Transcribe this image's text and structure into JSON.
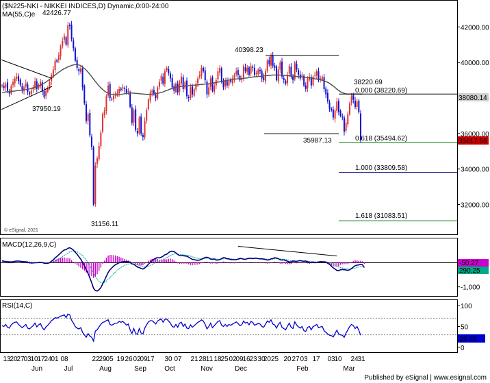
{
  "header": {
    "title": "($N225-NKI - NIKKEI INDICES,D) Dynamic,0:00-24:00",
    "ma_label": "MA(55,C)e",
    "watermark": "© eSignal, 2021",
    "published": "Published by eSignal | www.esignal.com"
  },
  "colors": {
    "up": "#e03030",
    "down": "#1010d0",
    "ma": "#555555",
    "fib_green": "#007700",
    "fib_navy": "#000080",
    "macd_line": "#000080",
    "macd_signal": "#00aa88",
    "macd_hist": "#cc00cc",
    "rsi": "#0000cc",
    "last_price_bg": "#cc0000",
    "current_label_bg": "#cfcfcf"
  },
  "chart_data": [
    {
      "type": "candlestick",
      "panel": "price",
      "ylim": [
        30400,
        43400
      ],
      "y_ticks": [
        "42000.00",
        "40000.00",
        "38000.00",
        "36000.00",
        "34000.00",
        "32000.00"
      ],
      "x_tick_labels": [
        "13",
        "20",
        "27",
        "03",
        "10",
        "17",
        "24",
        "01",
        "08",
        "22",
        "29",
        "05",
        "19",
        "26",
        "02",
        "09",
        "17",
        "30",
        "07",
        "21",
        "28",
        "11",
        "18",
        "25",
        "02",
        "09",
        "16",
        "23",
        "30",
        "2025",
        "20",
        "27",
        "03",
        "17",
        "03",
        "10",
        "24",
        "31"
      ],
      "month_labels": [
        "Jun",
        "Jul",
        "Aug",
        "Sep",
        "Oct",
        "Nov",
        "Dec",
        "Feb",
        "Mar"
      ],
      "close": [
        38720,
        38560,
        38800,
        38400,
        38250,
        38680,
        38900,
        39100,
        39200,
        38950,
        38720,
        38400,
        38600,
        38830,
        38340,
        38200,
        38410,
        38620,
        38950,
        38500,
        38740,
        38900,
        38360,
        38050,
        38400,
        38600,
        38900,
        39300,
        39600,
        40100,
        40050,
        40400,
        40900,
        41200,
        41500,
        41000,
        42100,
        42050,
        41300,
        40800,
        40100,
        39700,
        39500,
        39650,
        38600,
        37700,
        36700,
        37100,
        35900,
        35250,
        32000,
        34200,
        34600,
        35300,
        36050,
        37100,
        37300,
        38100,
        38700,
        38000,
        37920,
        38130,
        38250,
        38280,
        38500,
        38450,
        38600,
        38500,
        38300,
        38400,
        37500,
        36600,
        37300,
        36200,
        36000,
        36900,
        36000,
        35800,
        36700,
        37300,
        37900,
        38300,
        38400,
        38250,
        38000,
        38600,
        38900,
        39250,
        38800,
        39500,
        39700,
        39400,
        39100,
        38600,
        38400,
        38800,
        38300,
        38900,
        39200,
        38500,
        38900,
        38100,
        38000,
        38600,
        38200,
        38500,
        38800,
        39100,
        39300,
        39700,
        39500,
        39000,
        38200,
        38600,
        39100,
        38400,
        38700,
        39000,
        39500,
        39700,
        38900,
        38600,
        39000,
        38700,
        39000,
        38900,
        39100,
        39300,
        39500,
        39300,
        39000,
        39100,
        39800,
        39500,
        39700,
        39300,
        39800,
        39700,
        39300,
        39400,
        39600,
        39500,
        39100,
        39000,
        39500,
        40100,
        39900,
        40400,
        39800,
        39700,
        39000,
        39600,
        40000,
        39200,
        39000,
        38800,
        39300,
        39800,
        39200,
        39000,
        40000,
        39600,
        39300,
        39100,
        39300,
        38700,
        38500,
        39100,
        39200,
        38700,
        39200,
        39300,
        39500,
        39000,
        39100,
        39200,
        38500,
        38200,
        37800,
        37400,
        37300,
        36900,
        37300,
        37800,
        37200,
        37000,
        36900,
        36100,
        36600,
        37100,
        37700,
        38100,
        37900,
        37500,
        37800,
        37200,
        35620
      ],
      "ma55": [
        38300,
        38320,
        38340,
        38350,
        38360,
        38370,
        38380,
        38390,
        38410,
        38420,
        38430,
        38440,
        38450,
        38470,
        38490,
        38510,
        38530,
        38560,
        38590,
        38630,
        38670,
        38720,
        38770,
        38830,
        38900,
        38970,
        39050,
        39130,
        39210,
        39290,
        39370,
        39450,
        39520,
        39590,
        39650,
        39700,
        39750,
        39790,
        39830,
        39860,
        39880,
        39880,
        39860,
        39820,
        39750,
        39660,
        39560,
        39450,
        39330,
        39200,
        39060,
        38930,
        38800,
        38680,
        38570,
        38470,
        38390,
        38320,
        38270,
        38230,
        38200,
        38180,
        38170,
        38170,
        38180,
        38200,
        38220,
        38240,
        38260,
        38270,
        38280,
        38280,
        38270,
        38260,
        38250,
        38240,
        38230,
        38220,
        38210,
        38200,
        38200,
        38200,
        38210,
        38220,
        38240,
        38260,
        38280,
        38310,
        38340,
        38380,
        38420,
        38460,
        38500,
        38540,
        38570,
        38600,
        38620,
        38640,
        38650,
        38660,
        38670,
        38680,
        38690,
        38700,
        38710,
        38720,
        38730,
        38740,
        38750,
        38760,
        38770,
        38780,
        38790,
        38800,
        38810,
        38830,
        38850,
        38870,
        38890,
        38910,
        38930,
        38950,
        38970,
        38990,
        39010,
        39030,
        39050,
        39060,
        39070,
        39080,
        39090,
        39100,
        39110,
        39120,
        39130,
        39150,
        39160,
        39180,
        39190,
        39200,
        39210,
        39220,
        39230,
        39240,
        39250,
        39260,
        39270,
        39280,
        39290,
        39290,
        39290,
        39290,
        39290,
        39290,
        39280,
        39270,
        39260,
        39250,
        39240,
        39230,
        39220,
        39210,
        39200,
        39190,
        39180,
        39170,
        39160,
        39150,
        39140,
        39120,
        39100,
        39080,
        39060,
        39040,
        39020,
        39000,
        38970,
        38930,
        38880,
        38820,
        38750,
        38670,
        38590,
        38500,
        38420,
        38350,
        38300,
        38260,
        38230,
        38220,
        38220,
        38220,
        38220,
        38220,
        38220,
        38220,
        38220,
        38220
      ],
      "annotations": [
        {
          "text": "42426.77",
          "date_index": 36,
          "value": 42426.77
        },
        {
          "text": "37950.19",
          "date_index": 14,
          "value": 37950.19
        },
        {
          "text": "31156.11",
          "date_index": 50,
          "value": 31156.11
        },
        {
          "text": "40398.23",
          "date_index": 148,
          "value": 40398.23
        },
        {
          "text": "35987.13",
          "date_index": 190,
          "value": 35987.13
        },
        {
          "text": "38220.69",
          "date_index": 198,
          "value": 38220.69
        }
      ],
      "fib_levels": [
        {
          "label": "0.000 (38220.69)",
          "value": 38220.69
        },
        {
          "label": "0.618 (35494.62)",
          "value": 35494.62
        },
        {
          "label": "1.000 (33809.58)",
          "value": 33809.58
        },
        {
          "label": "1.618 (31083.51)",
          "value": 31083.51
        }
      ],
      "current_labels": [
        {
          "text": "38080.14",
          "value": 38080.14
        },
        {
          "text": "35617.56",
          "value": 35617.56
        }
      ]
    },
    {
      "type": "line",
      "panel": "macd",
      "label": "MACD(12,26,9,C)",
      "ylim": [
        -1350,
        950
      ],
      "y_ticks": [
        "-1,000"
      ],
      "current_labels": [
        "-50.27",
        "290.25"
      ],
      "macd": [
        80,
        60,
        50,
        40,
        30,
        30,
        40,
        60,
        70,
        70,
        60,
        50,
        40,
        40,
        20,
        0,
        -10,
        -10,
        0,
        0,
        10,
        20,
        10,
        -20,
        -30,
        -20,
        0,
        60,
        120,
        200,
        260,
        330,
        400,
        470,
        530,
        540,
        600,
        620,
        580,
        520,
        440,
        350,
        250,
        150,
        20,
        -120,
        -300,
        -440,
        -630,
        -830,
        -1060,
        -1150,
        -1170,
        -1120,
        -1030,
        -880,
        -730,
        -560,
        -400,
        -290,
        -210,
        -140,
        -80,
        -40,
        0,
        20,
        40,
        50,
        50,
        40,
        20,
        -50,
        -60,
        -120,
        -180,
        -200,
        -240,
        -260,
        -220,
        -150,
        -60,
        20,
        90,
        140,
        190,
        210,
        200,
        230,
        270,
        330,
        350,
        420,
        470,
        480,
        460,
        410,
        340,
        300,
        290,
        290,
        280,
        270,
        230,
        180,
        140,
        130,
        110,
        100,
        110,
        140,
        180,
        220,
        230,
        200,
        150,
        140,
        150,
        110,
        110,
        130,
        170,
        210,
        200,
        160,
        160,
        130,
        130,
        120,
        130,
        150,
        180,
        170,
        150,
        140,
        170,
        180,
        190,
        170,
        190,
        190,
        170,
        160,
        160,
        150,
        130,
        110,
        120,
        160,
        170,
        210,
        190,
        170,
        120,
        110,
        120,
        90,
        60,
        30,
        40,
        70,
        60,
        50,
        80,
        90,
        70,
        60,
        70,
        40,
        10,
        20,
        30,
        10,
        20,
        30,
        50,
        40,
        40,
        30,
        -20,
        -70,
        -140,
        -210,
        -260,
        -320,
        -330,
        -290,
        -280,
        -290,
        -300,
        -320,
        -290,
        -240,
        -180,
        -120,
        -100,
        -90,
        -70,
        -80,
        -200
      ],
      "signal": [
        60,
        62,
        62,
        60,
        55,
        50,
        48,
        50,
        54,
        57,
        57,
        56,
        53,
        50,
        44,
        35,
        26,
        19,
        15,
        12,
        12,
        13,
        13,
        6,
        -1,
        -5,
        -4,
        9,
        31,
        65,
        104,
        149,
        199,
        253,
        308,
        354,
        403,
        446,
        473,
        483,
        474,
        449,
        409,
        357,
        290,
        208,
        106,
        -3,
        -128,
        -268,
        -426,
        -571,
        -691,
        -777,
        -828,
        -838,
        -817,
        -766,
        -693,
        -612,
        -532,
        -454,
        -379,
        -311,
        -249,
        -195,
        -148,
        -108,
        -76,
        -53,
        -38,
        -40,
        -44,
        -59,
        -83,
        -106,
        -133,
        -158,
        -170,
        -166,
        -145,
        -112,
        -72,
        -30,
        14,
        53,
        83,
        112,
        144,
        181,
        215,
        256,
        299,
        335,
        360,
        370,
        364,
        351,
        339,
        329,
        319,
        309,
        293,
        270,
        244,
        221,
        199,
        179,
        165,
        160,
        164,
        175,
        186,
        189,
        181,
        173,
        168,
        156,
        147,
        144,
        149,
        161,
        169,
        167,
        166,
        159,
        153,
        147,
        143,
        145,
        152,
        155,
        154,
        151,
        155,
        160,
        166,
        167,
        172,
        176,
        175,
        172,
        170,
        166,
        159,
        149,
        143,
        147,
        151,
        163,
        168,
        168,
        159,
        149,
        143,
        133,
        119,
        101,
        89,
        85,
        80,
        74,
        75,
        78,
        77,
        73,
        73,
        66,
        55,
        48,
        44,
        37,
        34,
        33,
        37,
        38,
        38,
        36,
        25,
        6,
        -23,
        -60,
        -100,
        -144,
        -181,
        -203,
        -218,
        -230,
        -244,
        -259,
        -265,
        -260,
        -244,
        -220,
        -196,
        -175,
        -154,
        -139,
        -151
      ]
    },
    {
      "type": "line",
      "panel": "rsi",
      "label": "RSI(14,C)",
      "ylim": [
        -10,
        110
      ],
      "y_ticks": [
        "100",
        "50",
        "0"
      ],
      "current_label": "29.05",
      "values": [
        52,
        50,
        55,
        48,
        46,
        54,
        58,
        60,
        61,
        55,
        51,
        47,
        51,
        55,
        46,
        44,
        48,
        52,
        58,
        49,
        54,
        57,
        47,
        42,
        49,
        53,
        58,
        64,
        67,
        71,
        70,
        72,
        75,
        76,
        78,
        71,
        80,
        78,
        65,
        58,
        50,
        46,
        44,
        47,
        36,
        30,
        24,
        33,
        27,
        24,
        15,
        39,
        42,
        49,
        55,
        60,
        61,
        64,
        66,
        55,
        53,
        56,
        58,
        58,
        62,
        60,
        62,
        58,
        53,
        56,
        42,
        33,
        45,
        33,
        31,
        45,
        34,
        32,
        46,
        54,
        61,
        64,
        64,
        60,
        56,
        63,
        66,
        68,
        60,
        67,
        68,
        63,
        58,
        50,
        48,
        55,
        48,
        58,
        60,
        50,
        56,
        46,
        45,
        54,
        48,
        52,
        56,
        60,
        62,
        66,
        63,
        55,
        44,
        50,
        58,
        47,
        52,
        57,
        62,
        64,
        53,
        50,
        55,
        50,
        55,
        53,
        56,
        58,
        61,
        57,
        52,
        54,
        63,
        58,
        60,
        54,
        62,
        60,
        53,
        55,
        57,
        56,
        50,
        48,
        56,
        63,
        60,
        66,
        56,
        54,
        46,
        55,
        60,
        48,
        45,
        42,
        51,
        58,
        48,
        45,
        61,
        54,
        49,
        46,
        50,
        40,
        38,
        48,
        50,
        42,
        50,
        52,
        55,
        47,
        49,
        50,
        40,
        36,
        32,
        29,
        28,
        25,
        33,
        41,
        32,
        30,
        29,
        24,
        34,
        42,
        50,
        55,
        52,
        45,
        50,
        41,
        29
      ]
    }
  ]
}
